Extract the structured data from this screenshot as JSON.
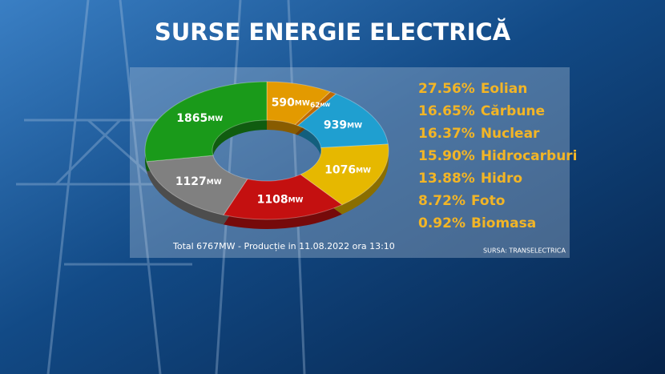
{
  "title": "SURSE ENERGIE ELECTRICĂ",
  "chart_data": {
    "type": "pie",
    "donut": true,
    "categories": [
      "Foto",
      "Biomasa",
      "Hidro",
      "Hidrocarburi",
      "Nuclear",
      "Cărbune",
      "Eolian"
    ],
    "values": [
      590,
      62,
      939,
      1076,
      1108,
      1127,
      1865
    ],
    "value_labels": [
      "590MW",
      "62MW",
      "939MW",
      "1076MW",
      "1108MW",
      "1127MW",
      "1865MW"
    ],
    "colors": [
      "#e39a00",
      "#c06a00",
      "#1f9fd0",
      "#e6b800",
      "#c41010",
      "#808080",
      "#1a9a1a"
    ],
    "legend": [
      {
        "share": {
          "value": 27.56,
          "label": "27.56%"
        },
        "name": "Eolian"
      },
      {
        "share": {
          "value": 16.65,
          "label": "16.65%"
        },
        "name": "Cărbune"
      },
      {
        "share": {
          "value": 16.37,
          "label": "16.37%"
        },
        "name": "Nuclear"
      },
      {
        "share": {
          "value": 15.9,
          "label": "15.90%"
        },
        "name": "Hidrocarburi"
      },
      {
        "share": {
          "value": 13.88,
          "label": "13.88%"
        },
        "name": "Hidro"
      },
      {
        "share": {
          "value": 8.72,
          "label": "8.72%"
        },
        "name": "Foto"
      },
      {
        "share": {
          "value": 0.92,
          "label": "0.92%"
        },
        "name": "Biomasa"
      }
    ],
    "footnote": "Total 6767MW - Producție in 11.08.2022 ora 13:10",
    "source": "SURSA: TRANSELECTRICA"
  }
}
